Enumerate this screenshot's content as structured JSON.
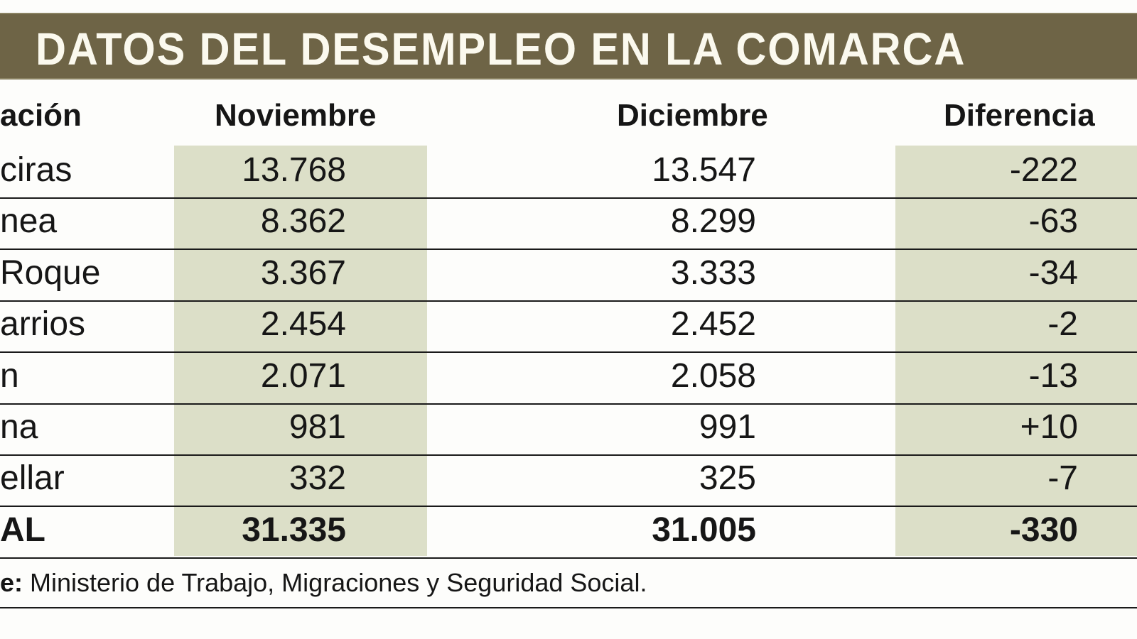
{
  "title": "DATOS DEL DESEMPLEO EN LA COMARCA",
  "colors": {
    "banner": "#6e6446",
    "shade": "#dcdfc8",
    "text": "#161616"
  },
  "table": {
    "headers": [
      "ación",
      "Noviembre",
      "Diciembre",
      "Diferencia"
    ],
    "rows": [
      {
        "name": "ciras",
        "nov": "13.768",
        "dic": "13.547",
        "dif": "-222"
      },
      {
        "name": "nea",
        "nov": "8.362",
        "dic": "8.299",
        "dif": "-63"
      },
      {
        "name": "Roque",
        "nov": "3.367",
        "dic": "3.333",
        "dif": "-34"
      },
      {
        "name": "arrios",
        "nov": "2.454",
        "dic": "2.452",
        "dif": "-2"
      },
      {
        "name": "n",
        "nov": "2.071",
        "dic": "2.058",
        "dif": "-13"
      },
      {
        "name": "na",
        "nov": "981",
        "dic": "991",
        "dif": "+10"
      },
      {
        "name": "ellar",
        "nov": "332",
        "dic": "325",
        "dif": "-7"
      }
    ],
    "total": {
      "name": "AL",
      "nov": "31.335",
      "dic": "31.005",
      "dif": "-330"
    }
  },
  "source": {
    "label": "e:",
    "text": " Ministerio de Trabajo, Migraciones y Seguridad Social."
  }
}
